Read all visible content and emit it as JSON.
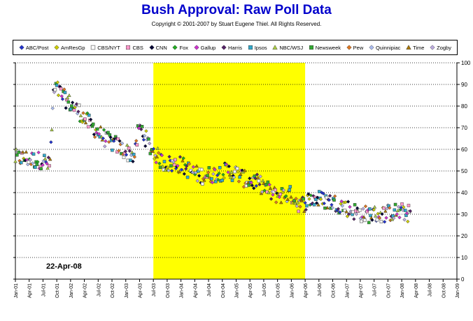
{
  "chart_data": {
    "type": "scatter",
    "title": "Bush Approval:  Raw Poll Data",
    "subtitle": "Copyright © 2001-2007 by Stuart Eugene Thiel.  All Rights Reserved.",
    "annotation": "22-Apr-08",
    "ylim": [
      0,
      100
    ],
    "y_ticks": [
      0,
      10,
      20,
      30,
      40,
      50,
      60,
      70,
      80,
      90,
      100
    ],
    "y_axis_side": "right",
    "grid": "horizontal dotted",
    "legend_position": "top",
    "x_tick_labels": [
      "Jan-01",
      "Apr-01",
      "Jul-01",
      "Oct-01",
      "Jan-02",
      "Apr-02",
      "Jul-02",
      "Oct-02",
      "Jan-03",
      "Apr-03",
      "Jul-03",
      "Oct-03",
      "Jan-04",
      "Apr-04",
      "Jul-04",
      "Oct-04",
      "Jan-05",
      "Apr-05",
      "Jul-05",
      "Oct-05",
      "Jan-06",
      "Apr-06",
      "Jul-06",
      "Oct-06",
      "Jan-07",
      "Apr-07",
      "Jul-07",
      "Oct-07",
      "Jan-08",
      "Apr-08",
      "Jul-08",
      "Oct-08",
      "Jan-09"
    ],
    "highlight_band": {
      "from": "Jul-03",
      "to": "Apr-06",
      "color": "#ffff00"
    },
    "series": [
      {
        "name": "ABC/Post",
        "marker": "diamond",
        "color": "#2233cc"
      },
      {
        "name": "AmResGp",
        "marker": "diamond",
        "color": "#cccc00"
      },
      {
        "name": "CBS/NYT",
        "marker": "square-open",
        "color": "#888888"
      },
      {
        "name": "CBS",
        "marker": "square",
        "color": "#ff99cc"
      },
      {
        "name": "CNN",
        "marker": "diamond",
        "color": "#000033"
      },
      {
        "name": "Fox",
        "marker": "diamond",
        "color": "#22aa22"
      },
      {
        "name": "Gallup",
        "marker": "diamond",
        "color": "#cc33cc"
      },
      {
        "name": "Harris",
        "marker": "diamond",
        "color": "#552266"
      },
      {
        "name": "Ipsos",
        "marker": "square",
        "color": "#33aacc"
      },
      {
        "name": "NBC/WSJ",
        "marker": "triangle",
        "color": "#aacc44"
      },
      {
        "name": "Newsweek",
        "marker": "square",
        "color": "#33aa33"
      },
      {
        "name": "Pew",
        "marker": "diamond",
        "color": "#dd7722"
      },
      {
        "name": "Quinnipiac",
        "marker": "diamond",
        "color": "#aabbee"
      },
      {
        "name": "Time",
        "marker": "triangle",
        "color": "#aa7700"
      },
      {
        "name": "Zogby",
        "marker": "diamond",
        "color": "#bbaadd"
      }
    ],
    "trend_points": [
      {
        "x": 0.0,
        "y": 56
      },
      {
        "x": 2.0,
        "y": 56
      },
      {
        "x": 4.0,
        "y": 55
      },
      {
        "x": 6.0,
        "y": 55
      },
      {
        "x": 7.5,
        "y": 52
      },
      {
        "x": 8.3,
        "y": 86
      },
      {
        "x": 9.0,
        "y": 88
      },
      {
        "x": 10.5,
        "y": 84
      },
      {
        "x": 12.0,
        "y": 81
      },
      {
        "x": 14.0,
        "y": 77
      },
      {
        "x": 16.0,
        "y": 72
      },
      {
        "x": 18.0,
        "y": 68
      },
      {
        "x": 20.0,
        "y": 64
      },
      {
        "x": 22.0,
        "y": 62
      },
      {
        "x": 24.0,
        "y": 59
      },
      {
        "x": 26.0,
        "y": 57
      },
      {
        "x": 26.8,
        "y": 70
      },
      {
        "x": 27.5,
        "y": 69
      },
      {
        "x": 29.0,
        "y": 62
      },
      {
        "x": 30.0,
        "y": 59
      },
      {
        "x": 32.0,
        "y": 54
      },
      {
        "x": 34.0,
        "y": 53
      },
      {
        "x": 36.0,
        "y": 53
      },
      {
        "x": 38.0,
        "y": 50
      },
      {
        "x": 40.0,
        "y": 48
      },
      {
        "x": 42.0,
        "y": 48
      },
      {
        "x": 44.0,
        "y": 49
      },
      {
        "x": 46.0,
        "y": 50
      },
      {
        "x": 48.0,
        "y": 49
      },
      {
        "x": 50.0,
        "y": 46
      },
      {
        "x": 52.0,
        "y": 45
      },
      {
        "x": 54.0,
        "y": 43
      },
      {
        "x": 56.0,
        "y": 39
      },
      {
        "x": 58.0,
        "y": 39
      },
      {
        "x": 60.0,
        "y": 39
      },
      {
        "x": 62.0,
        "y": 34
      },
      {
        "x": 64.0,
        "y": 37
      },
      {
        "x": 66.0,
        "y": 37
      },
      {
        "x": 68.0,
        "y": 36
      },
      {
        "x": 70.0,
        "y": 35
      },
      {
        "x": 72.0,
        "y": 33
      },
      {
        "x": 74.0,
        "y": 31
      },
      {
        "x": 76.0,
        "y": 30
      },
      {
        "x": 78.0,
        "y": 30
      },
      {
        "x": 80.0,
        "y": 30
      },
      {
        "x": 82.0,
        "y": 31
      },
      {
        "x": 84.0,
        "y": 31
      },
      {
        "x": 86.0,
        "y": 30
      }
    ],
    "x_units": "months since Jan-01"
  }
}
